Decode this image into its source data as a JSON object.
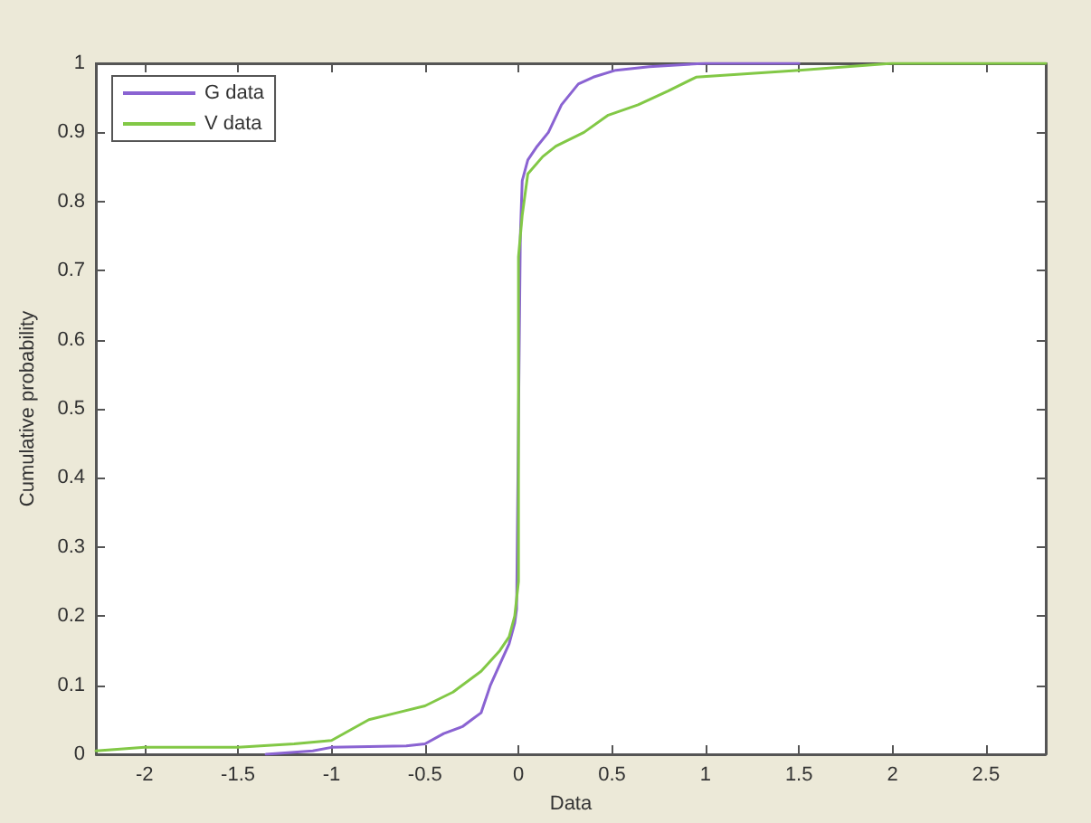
{
  "chart_data": {
    "type": "line",
    "xlabel": "Data",
    "ylabel": "Cumulative probability",
    "xlim": [
      -2.26,
      2.82
    ],
    "xticks": [
      -2,
      -1.5,
      -1,
      -0.5,
      0,
      0.5,
      1,
      1.5,
      2,
      2.5
    ],
    "ylim": [
      0,
      1
    ],
    "yticks": [
      0,
      0.1,
      0.2,
      0.3,
      0.4,
      0.5,
      0.6,
      0.7,
      0.8,
      0.9,
      1
    ],
    "grid": false,
    "legend": "top left",
    "marker": "none",
    "line_style": "solid",
    "series": [
      {
        "name": "G data",
        "color": "#8a63d2",
        "x": [
          -1.35,
          -1.1,
          -1.0,
          -0.6,
          -0.5,
          -0.4,
          -0.3,
          -0.25,
          -0.2,
          -0.15,
          -0.1,
          -0.05,
          -0.02,
          -0.01,
          0.01,
          0.02,
          0.05,
          0.1,
          0.16,
          0.23,
          0.32,
          0.4,
          0.52,
          0.7,
          1.0,
          1.5
        ],
        "values": [
          0.0,
          0.005,
          0.01,
          0.012,
          0.015,
          0.03,
          0.04,
          0.05,
          0.06,
          0.1,
          0.13,
          0.16,
          0.19,
          0.21,
          0.75,
          0.83,
          0.86,
          0.88,
          0.9,
          0.94,
          0.97,
          0.98,
          0.99,
          0.995,
          1.0,
          1.0
        ]
      },
      {
        "name": "V data",
        "color": "#82c846",
        "x": [
          -2.26,
          -2.0,
          -1.5,
          -1.2,
          -1.0,
          -0.9,
          -0.8,
          -0.65,
          -0.5,
          -0.35,
          -0.2,
          -0.1,
          -0.05,
          -0.02,
          0.0,
          0.0,
          0.02,
          0.05,
          0.13,
          0.2,
          0.35,
          0.48,
          0.64,
          0.8,
          0.95,
          1.5,
          2.0,
          2.82
        ],
        "values": [
          0.005,
          0.01,
          0.01,
          0.015,
          0.02,
          0.035,
          0.05,
          0.06,
          0.07,
          0.09,
          0.12,
          0.15,
          0.17,
          0.2,
          0.25,
          0.72,
          0.78,
          0.84,
          0.865,
          0.88,
          0.9,
          0.925,
          0.94,
          0.96,
          0.98,
          0.99,
          1.0,
          1.0
        ]
      }
    ]
  }
}
